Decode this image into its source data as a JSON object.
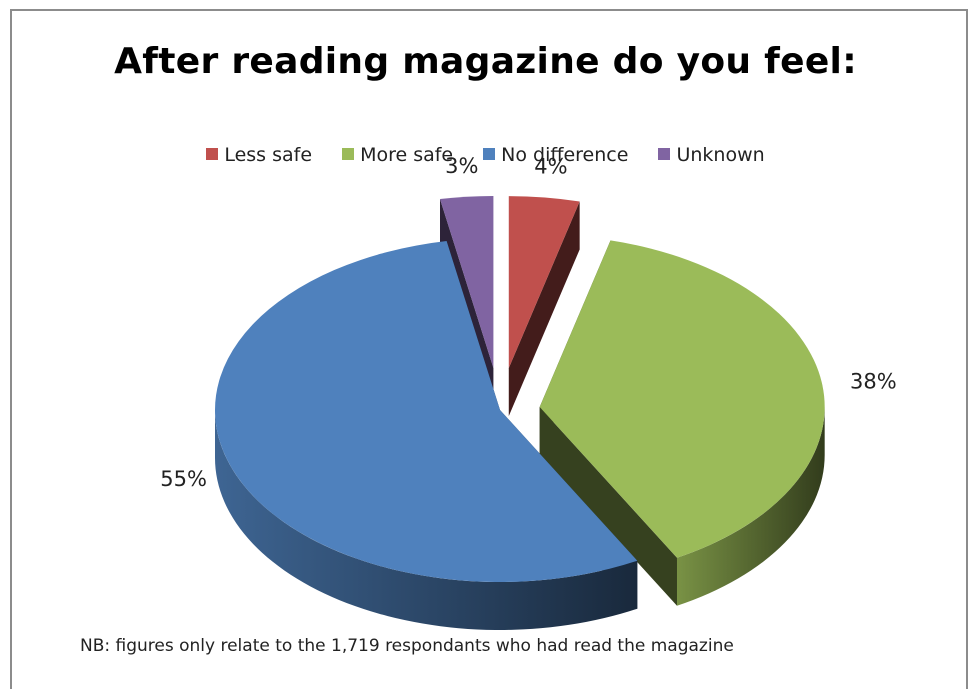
{
  "chart_data": {
    "type": "pie",
    "title": "After reading magazine do you feel:",
    "categories": [
      "Less safe",
      "More safe",
      "No difference",
      "Unknown"
    ],
    "values": [
      4,
      38,
      55,
      3
    ],
    "labels": [
      "4%",
      "38%",
      "55%",
      "3%"
    ],
    "colors": [
      "#c0504d",
      "#9bbb59",
      "#4f81bd",
      "#8064a2"
    ],
    "legend_position": "top",
    "style": "3d-exploded"
  },
  "footnote": "NB: figures only relate to the 1,719 respondants who had read the magazine"
}
